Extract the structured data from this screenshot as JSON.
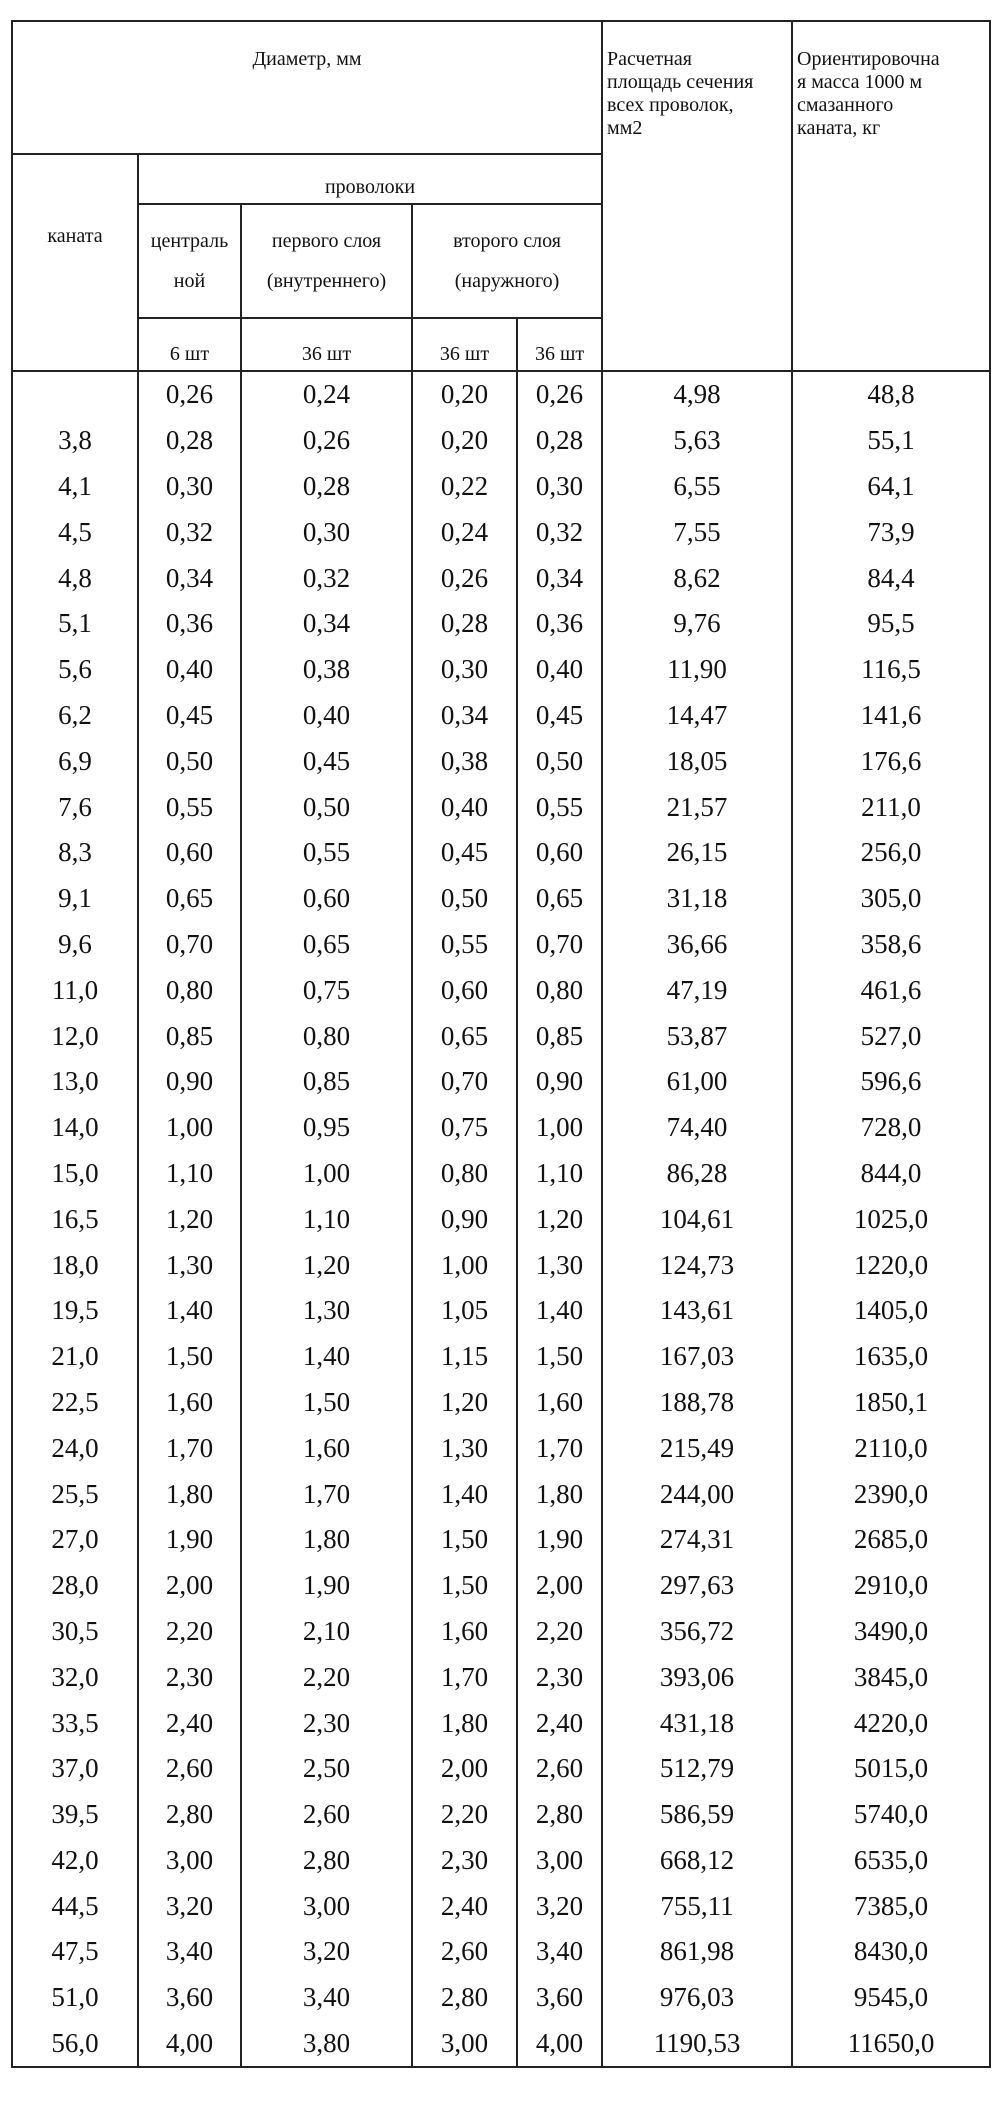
{
  "header": {
    "diameter": "Диаметр, мм",
    "rope": "каната",
    "wires": "проволоки",
    "central": [
      "централь",
      "ной"
    ],
    "first_layer": [
      "первого слоя",
      "(внутреннего)"
    ],
    "second_layer": [
      "второго слоя",
      "(наружного)"
    ],
    "counts": [
      "6 шт",
      "36 шт",
      "36 шт",
      "36 шт"
    ],
    "area": [
      "Расчетная",
      "площадь сечения",
      "всех проволок,",
      "мм2"
    ],
    "mass": [
      "Ориентировочна",
      "я масса 1000 м",
      "смазанного",
      "каната, кг"
    ]
  },
  "table": {
    "rows": [
      [
        null,
        "0,26",
        "0,24",
        "0,20",
        "0,26",
        "4,98",
        "48,8"
      ],
      [
        "3,8",
        "0,28",
        "0,26",
        "0,20",
        "0,28",
        "5,63",
        "55,1"
      ],
      [
        "4,1",
        "0,30",
        "0,28",
        "0,22",
        "0,30",
        "6,55",
        "64,1"
      ],
      [
        "4,5",
        "0,32",
        "0,30",
        "0,24",
        "0,32",
        "7,55",
        "73,9"
      ],
      [
        "4,8",
        "0,34",
        "0,32",
        "0,26",
        "0,34",
        "8,62",
        "84,4"
      ],
      [
        "5,1",
        "0,36",
        "0,34",
        "0,28",
        "0,36",
        "9,76",
        "95,5"
      ],
      [
        "5,6",
        "0,40",
        "0,38",
        "0,30",
        "0,40",
        "11,90",
        "116,5"
      ],
      [
        "6,2",
        "0,45",
        "0,40",
        "0,34",
        "0,45",
        "14,47",
        "141,6"
      ],
      [
        "6,9",
        "0,50",
        "0,45",
        "0,38",
        "0,50",
        "18,05",
        "176,6"
      ],
      [
        "7,6",
        "0,55",
        "0,50",
        "0,40",
        "0,55",
        "21,57",
        "211,0"
      ],
      [
        "8,3",
        "0,60",
        "0,55",
        "0,45",
        "0,60",
        "26,15",
        "256,0"
      ],
      [
        "9,1",
        "0,65",
        "0,60",
        "0,50",
        "0,65",
        "31,18",
        "305,0"
      ],
      [
        "9,6",
        "0,70",
        "0,65",
        "0,55",
        "0,70",
        "36,66",
        "358,6"
      ],
      [
        "11,0",
        "0,80",
        "0,75",
        "0,60",
        "0,80",
        "47,19",
        "461,6"
      ],
      [
        "12,0",
        "0,85",
        "0,80",
        "0,65",
        "0,85",
        "53,87",
        "527,0"
      ],
      [
        "13,0",
        "0,90",
        "0,85",
        "0,70",
        "0,90",
        "61,00",
        "596,6"
      ],
      [
        "14,0",
        "1,00",
        "0,95",
        "0,75",
        "1,00",
        "74,40",
        "728,0"
      ],
      [
        "15,0",
        "1,10",
        "1,00",
        "0,80",
        "1,10",
        "86,28",
        "844,0"
      ],
      [
        "16,5",
        "1,20",
        "1,10",
        "0,90",
        "1,20",
        "104,61",
        "1025,0"
      ],
      [
        "18,0",
        "1,30",
        "1,20",
        "1,00",
        "1,30",
        "124,73",
        "1220,0"
      ],
      [
        "19,5",
        "1,40",
        "1,30",
        "1,05",
        "1,40",
        "143,61",
        "1405,0"
      ],
      [
        "21,0",
        "1,50",
        "1,40",
        "1,15",
        "1,50",
        "167,03",
        "1635,0"
      ],
      [
        "22,5",
        "1,60",
        "1,50",
        "1,20",
        "1,60",
        "188,78",
        "1850,1"
      ],
      [
        "24,0",
        "1,70",
        "1,60",
        "1,30",
        "1,70",
        "215,49",
        "2110,0"
      ],
      [
        "25,5",
        "1,80",
        "1,70",
        "1,40",
        "1,80",
        "244,00",
        "2390,0"
      ],
      [
        "27,0",
        "1,90",
        "1,80",
        "1,50",
        "1,90",
        "274,31",
        "2685,0"
      ],
      [
        "28,0",
        "2,00",
        "1,90",
        "1,50",
        "2,00",
        "297,63",
        "2910,0"
      ],
      [
        "30,5",
        "2,20",
        "2,10",
        "1,60",
        "2,20",
        "356,72",
        "3490,0"
      ],
      [
        "32,0",
        "2,30",
        "2,20",
        "1,70",
        "2,30",
        "393,06",
        "3845,0"
      ],
      [
        "33,5",
        "2,40",
        "2,30",
        "1,80",
        "2,40",
        "431,18",
        "4220,0"
      ],
      [
        "37,0",
        "2,60",
        "2,50",
        "2,00",
        "2,60",
        "512,79",
        "5015,0"
      ],
      [
        "39,5",
        "2,80",
        "2,60",
        "2,20",
        "2,80",
        "586,59",
        "5740,0"
      ],
      [
        "42,0",
        "3,00",
        "2,80",
        "2,30",
        "3,00",
        "668,12",
        "6535,0"
      ],
      [
        "44,5",
        "3,20",
        "3,00",
        "2,40",
        "3,20",
        "755,11",
        "7385,0"
      ],
      [
        "47,5",
        "3,40",
        "3,20",
        "2,60",
        "3,40",
        "861,98",
        "8430,0"
      ],
      [
        "51,0",
        "3,60",
        "3,40",
        "2,80",
        "3,60",
        "976,03",
        "9545,0"
      ],
      [
        "56,0",
        "4,00",
        "3,80",
        "3,00",
        "4,00",
        "1190,53",
        "11650,0"
      ]
    ]
  }
}
